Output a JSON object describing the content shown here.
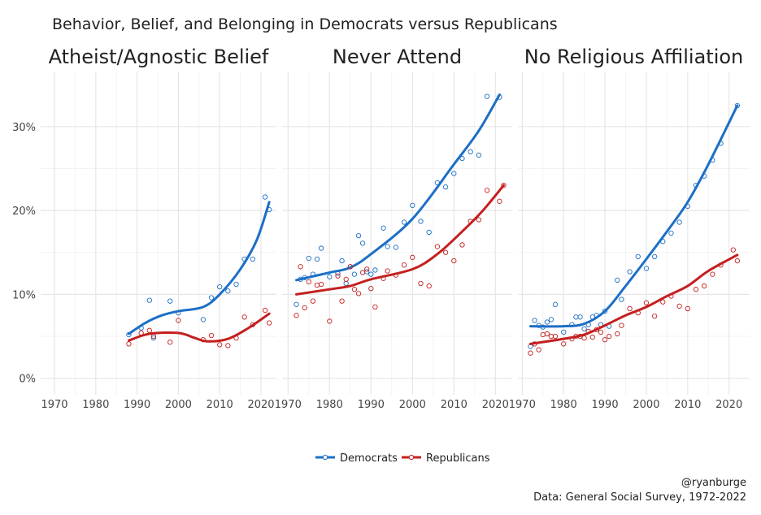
{
  "chart_data": {
    "type": "scatter",
    "title": "Behavior, Belief, and Belonging in Democrats versus Republicans",
    "caption": [
      "@ryanburge",
      "Data: General Social Survey, 1972-2022"
    ],
    "xlim": [
      1970,
      2022
    ],
    "ylim": [
      0,
      35
    ],
    "x_ticks": [
      "1970",
      "1980",
      "1990",
      "2000",
      "2010",
      "2020"
    ],
    "x_tick_values": [
      1970,
      1980,
      1990,
      2000,
      2010,
      2020
    ],
    "y_ticks": [
      "0%",
      "10%",
      "20%",
      "30%"
    ],
    "y_tick_values": [
      0,
      10,
      20,
      30
    ],
    "legend": {
      "position": "bottom",
      "entries": [
        {
          "name": "Democrats",
          "color": "#1c6fc6"
        },
        {
          "name": "Republicans",
          "color": "#c42020"
        }
      ]
    },
    "panels": [
      {
        "title": "Atheist/Agnostic Belief",
        "series": [
          {
            "name": "Democrats",
            "points": [
              [
                1988,
                5.2
              ],
              [
                1991,
                6.0
              ],
              [
                1993,
                9.3
              ],
              [
                1994,
                4.8
              ],
              [
                1998,
                9.2
              ],
              [
                2000,
                7.8
              ],
              [
                2006,
                7.0
              ],
              [
                2008,
                9.6
              ],
              [
                2010,
                10.9
              ],
              [
                2012,
                10.4
              ],
              [
                2014,
                11.2
              ],
              [
                2016,
                14.2
              ],
              [
                2018,
                14.2
              ],
              [
                2021,
                21.6
              ],
              [
                2022,
                20.1
              ]
            ],
            "smooth": [
              [
                1988,
                5.3
              ],
              [
                1992,
                6.6
              ],
              [
                1996,
                7.5
              ],
              [
                2000,
                8.0
              ],
              [
                2006,
                8.5
              ],
              [
                2010,
                10.0
              ],
              [
                2015,
                13.0
              ],
              [
                2019,
                16.5
              ],
              [
                2022,
                21.0
              ]
            ]
          },
          {
            "name": "Republicans",
            "points": [
              [
                1988,
                4.1
              ],
              [
                1991,
                5.4
              ],
              [
                1993,
                5.7
              ],
              [
                1994,
                5.0
              ],
              [
                1998,
                4.3
              ],
              [
                2000,
                6.9
              ],
              [
                2006,
                4.6
              ],
              [
                2008,
                5.1
              ],
              [
                2010,
                4.0
              ],
              [
                2012,
                3.9
              ],
              [
                2014,
                4.8
              ],
              [
                2016,
                7.3
              ],
              [
                2018,
                6.4
              ],
              [
                2021,
                8.1
              ],
              [
                2022,
                6.6
              ]
            ],
            "smooth": [
              [
                1988,
                4.5
              ],
              [
                1993,
                5.3
              ],
              [
                2000,
                5.4
              ],
              [
                2004,
                4.8
              ],
              [
                2007,
                4.4
              ],
              [
                2012,
                4.7
              ],
              [
                2017,
                6.0
              ],
              [
                2022,
                7.7
              ]
            ]
          }
        ]
      },
      {
        "title": "Never Attend",
        "series": [
          {
            "name": "Democrats",
            "points": [
              [
                1972,
                8.8
              ],
              [
                1973,
                11.8
              ],
              [
                1974,
                12
              ],
              [
                1975,
                14.3
              ],
              [
                1976,
                12.4
              ],
              [
                1977,
                14.2
              ],
              [
                1978,
                15.5
              ],
              [
                1980,
                12.1
              ],
              [
                1982,
                12.5
              ],
              [
                1983,
                14
              ],
              [
                1984,
                11.3
              ],
              [
                1985,
                13.3
              ],
              [
                1986,
                12.4
              ],
              [
                1987,
                17
              ],
              [
                1988,
                16.1
              ],
              [
                1989,
                12.7
              ],
              [
                1990,
                12.4
              ],
              [
                1991,
                12.9
              ],
              [
                1993,
                17.9
              ],
              [
                1994,
                15.7
              ],
              [
                1996,
                15.6
              ],
              [
                1998,
                18.6
              ],
              [
                2000,
                20.6
              ],
              [
                2002,
                18.7
              ],
              [
                2004,
                17.4
              ],
              [
                2006,
                23.3
              ],
              [
                2008,
                22.8
              ],
              [
                2010,
                24.4
              ],
              [
                2012,
                26.2
              ],
              [
                2014,
                27
              ],
              [
                2016,
                26.6
              ],
              [
                2018,
                33.6
              ],
              [
                2021,
                33.5
              ]
            ],
            "smooth": [
              [
                1972,
                11.7
              ],
              [
                1980,
                12.6
              ],
              [
                1985,
                13.2
              ],
              [
                1990,
                14.8
              ],
              [
                2000,
                19
              ],
              [
                2010,
                25.5
              ],
              [
                2016,
                29.5
              ],
              [
                2021,
                33.8
              ]
            ]
          },
          {
            "name": "Republicans",
            "points": [
              [
                1972,
                7.5
              ],
              [
                1973,
                13.3
              ],
              [
                1974,
                8.4
              ],
              [
                1975,
                11.5
              ],
              [
                1976,
                9.2
              ],
              [
                1977,
                11.1
              ],
              [
                1978,
                11.2
              ],
              [
                1980,
                6.8
              ],
              [
                1982,
                12.2
              ],
              [
                1983,
                9.2
              ],
              [
                1984,
                11.8
              ],
              [
                1985,
                13.3
              ],
              [
                1986,
                10.6
              ],
              [
                1987,
                10.1
              ],
              [
                1988,
                12.6
              ],
              [
                1989,
                13
              ],
              [
                1990,
                10.7
              ],
              [
                1991,
                8.5
              ],
              [
                1993,
                11.9
              ],
              [
                1994,
                12.8
              ],
              [
                1996,
                12.3
              ],
              [
                1998,
                13.5
              ],
              [
                2000,
                14.4
              ],
              [
                2002,
                11.3
              ],
              [
                2004,
                11
              ],
              [
                2006,
                15.7
              ],
              [
                2008,
                15
              ],
              [
                2010,
                14
              ],
              [
                2012,
                15.9
              ],
              [
                2014,
                18.7
              ],
              [
                2016,
                18.9
              ],
              [
                2018,
                22.4
              ],
              [
                2021,
                21.1
              ],
              [
                2022,
                23
              ]
            ],
            "smooth": [
              [
                1972,
                10
              ],
              [
                1980,
                10.6
              ],
              [
                1985,
                11
              ],
              [
                1990,
                11.8
              ],
              [
                2000,
                13
              ],
              [
                2006,
                14.8
              ],
              [
                2012,
                17.5
              ],
              [
                2017,
                20
              ],
              [
                2022,
                23
              ]
            ]
          }
        ]
      },
      {
        "title": "No Religious Affiliation",
        "series": [
          {
            "name": "Democrats",
            "points": [
              [
                1972,
                3.8
              ],
              [
                1973,
                6.9
              ],
              [
                1974,
                6.3
              ],
              [
                1975,
                6.1
              ],
              [
                1976,
                6.7
              ],
              [
                1977,
                7.0
              ],
              [
                1978,
                8.8
              ],
              [
                1980,
                5.5
              ],
              [
                1982,
                6.4
              ],
              [
                1983,
                7.3
              ],
              [
                1984,
                7.3
              ],
              [
                1985,
                5.9
              ],
              [
                1986,
                6.4
              ],
              [
                1987,
                7.3
              ],
              [
                1988,
                7.5
              ],
              [
                1989,
                6.4
              ],
              [
                1990,
                8
              ],
              [
                1991,
                6.2
              ],
              [
                1993,
                11.7
              ],
              [
                1994,
                9.4
              ],
              [
                1996,
                12.7
              ],
              [
                1998,
                14.5
              ],
              [
                2000,
                13.1
              ],
              [
                2002,
                14.5
              ],
              [
                2004,
                16.3
              ],
              [
                2006,
                17.3
              ],
              [
                2008,
                18.6
              ],
              [
                2010,
                20.5
              ],
              [
                2012,
                23
              ],
              [
                2014,
                24.1
              ],
              [
                2016,
                26
              ],
              [
                2018,
                28
              ],
              [
                2022,
                32.5
              ]
            ],
            "smooth": [
              [
                1972,
                6.2
              ],
              [
                1980,
                6.2
              ],
              [
                1985,
                6.5
              ],
              [
                1990,
                8
              ],
              [
                1995,
                11
              ],
              [
                2000,
                14.2
              ],
              [
                2005,
                17.5
              ],
              [
                2010,
                21
              ],
              [
                2015,
                25.5
              ],
              [
                2022,
                32.5
              ]
            ]
          },
          {
            "name": "Republicans",
            "points": [
              [
                1972,
                3.0
              ],
              [
                1973,
                4.1
              ],
              [
                1974,
                3.4
              ],
              [
                1975,
                5.2
              ],
              [
                1976,
                5.3
              ],
              [
                1977,
                5.0
              ],
              [
                1978,
                5.0
              ],
              [
                1980,
                4.1
              ],
              [
                1982,
                4.7
              ],
              [
                1983,
                5
              ],
              [
                1984,
                5
              ],
              [
                1985,
                4.8
              ],
              [
                1986,
                5.6
              ],
              [
                1987,
                4.9
              ],
              [
                1988,
                5.8
              ],
              [
                1989,
                5.5
              ],
              [
                1990,
                4.6
              ],
              [
                1991,
                5
              ],
              [
                1993,
                5.3
              ],
              [
                1994,
                6.3
              ],
              [
                1996,
                8.3
              ],
              [
                1998,
                7.8
              ],
              [
                2000,
                9
              ],
              [
                2002,
                7.4
              ],
              [
                2004,
                9.1
              ],
              [
                2006,
                9.8
              ],
              [
                2008,
                8.6
              ],
              [
                2010,
                8.3
              ],
              [
                2012,
                10.6
              ],
              [
                2014,
                11
              ],
              [
                2016,
                12.4
              ],
              [
                2018,
                13.5
              ],
              [
                2021,
                15.3
              ],
              [
                2022,
                14
              ]
            ],
            "smooth": [
              [
                1972,
                4.1
              ],
              [
                1980,
                4.7
              ],
              [
                1985,
                5.2
              ],
              [
                1990,
                6.3
              ],
              [
                1995,
                7.5
              ],
              [
                2000,
                8.5
              ],
              [
                2005,
                9.8
              ],
              [
                2010,
                11
              ],
              [
                2015,
                12.8
              ],
              [
                2022,
                14.7
              ]
            ]
          }
        ]
      }
    ]
  }
}
